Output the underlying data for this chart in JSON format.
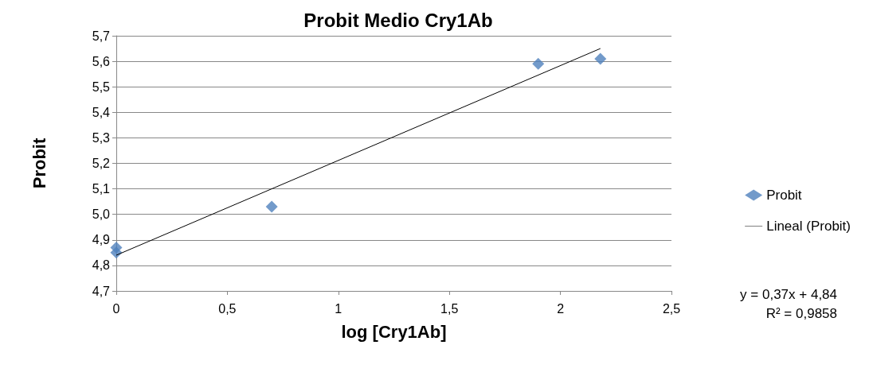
{
  "chart_data": {
    "type": "scatter",
    "title": "Probit Medio Cry1Ab",
    "xlabel": "log [Cry1Ab]",
    "ylabel": "Probit",
    "series": [
      {
        "name": "Probit",
        "color": "#4f81bd",
        "marker": "diamond",
        "x": [
          0,
          0,
          0.7,
          1.9,
          2.18
        ],
        "values": [
          4.87,
          4.85,
          5.03,
          5.59,
          5.61
        ]
      },
      {
        "name": "Lineal (Probit)",
        "type": "line",
        "color": "#000000",
        "marker": "none",
        "line_style": "solid",
        "x": [
          0,
          2.18
        ],
        "values": [
          4.84,
          5.65
        ]
      }
    ],
    "xlim": [
      0,
      2.5
    ],
    "xticks": [
      {
        "value": 0,
        "label": "0"
      },
      {
        "value": 0.5,
        "label": "0,5"
      },
      {
        "value": 1,
        "label": "1"
      },
      {
        "value": 1.5,
        "label": "1,5"
      },
      {
        "value": 2,
        "label": "2"
      },
      {
        "value": 2.5,
        "label": "2,5"
      }
    ],
    "ylim": [
      4.7,
      5.7
    ],
    "yticks": [
      {
        "value": 4.7,
        "label": "4,7"
      },
      {
        "value": 4.8,
        "label": "4,8"
      },
      {
        "value": 4.9,
        "label": "4,9"
      },
      {
        "value": 5.0,
        "label": "5,0"
      },
      {
        "value": 5.1,
        "label": "5,1"
      },
      {
        "value": 5.2,
        "label": "5,2"
      },
      {
        "value": 5.3,
        "label": "5,3"
      },
      {
        "value": 5.4,
        "label": "5,4"
      },
      {
        "value": 5.5,
        "label": "5,5"
      },
      {
        "value": 5.6,
        "label": "5,6"
      },
      {
        "value": 5.7,
        "label": "5,7"
      }
    ],
    "grid": "y",
    "legend": "right",
    "annotations": [
      "y = 0,37x + 4,84",
      "R² = 0,9858"
    ]
  }
}
